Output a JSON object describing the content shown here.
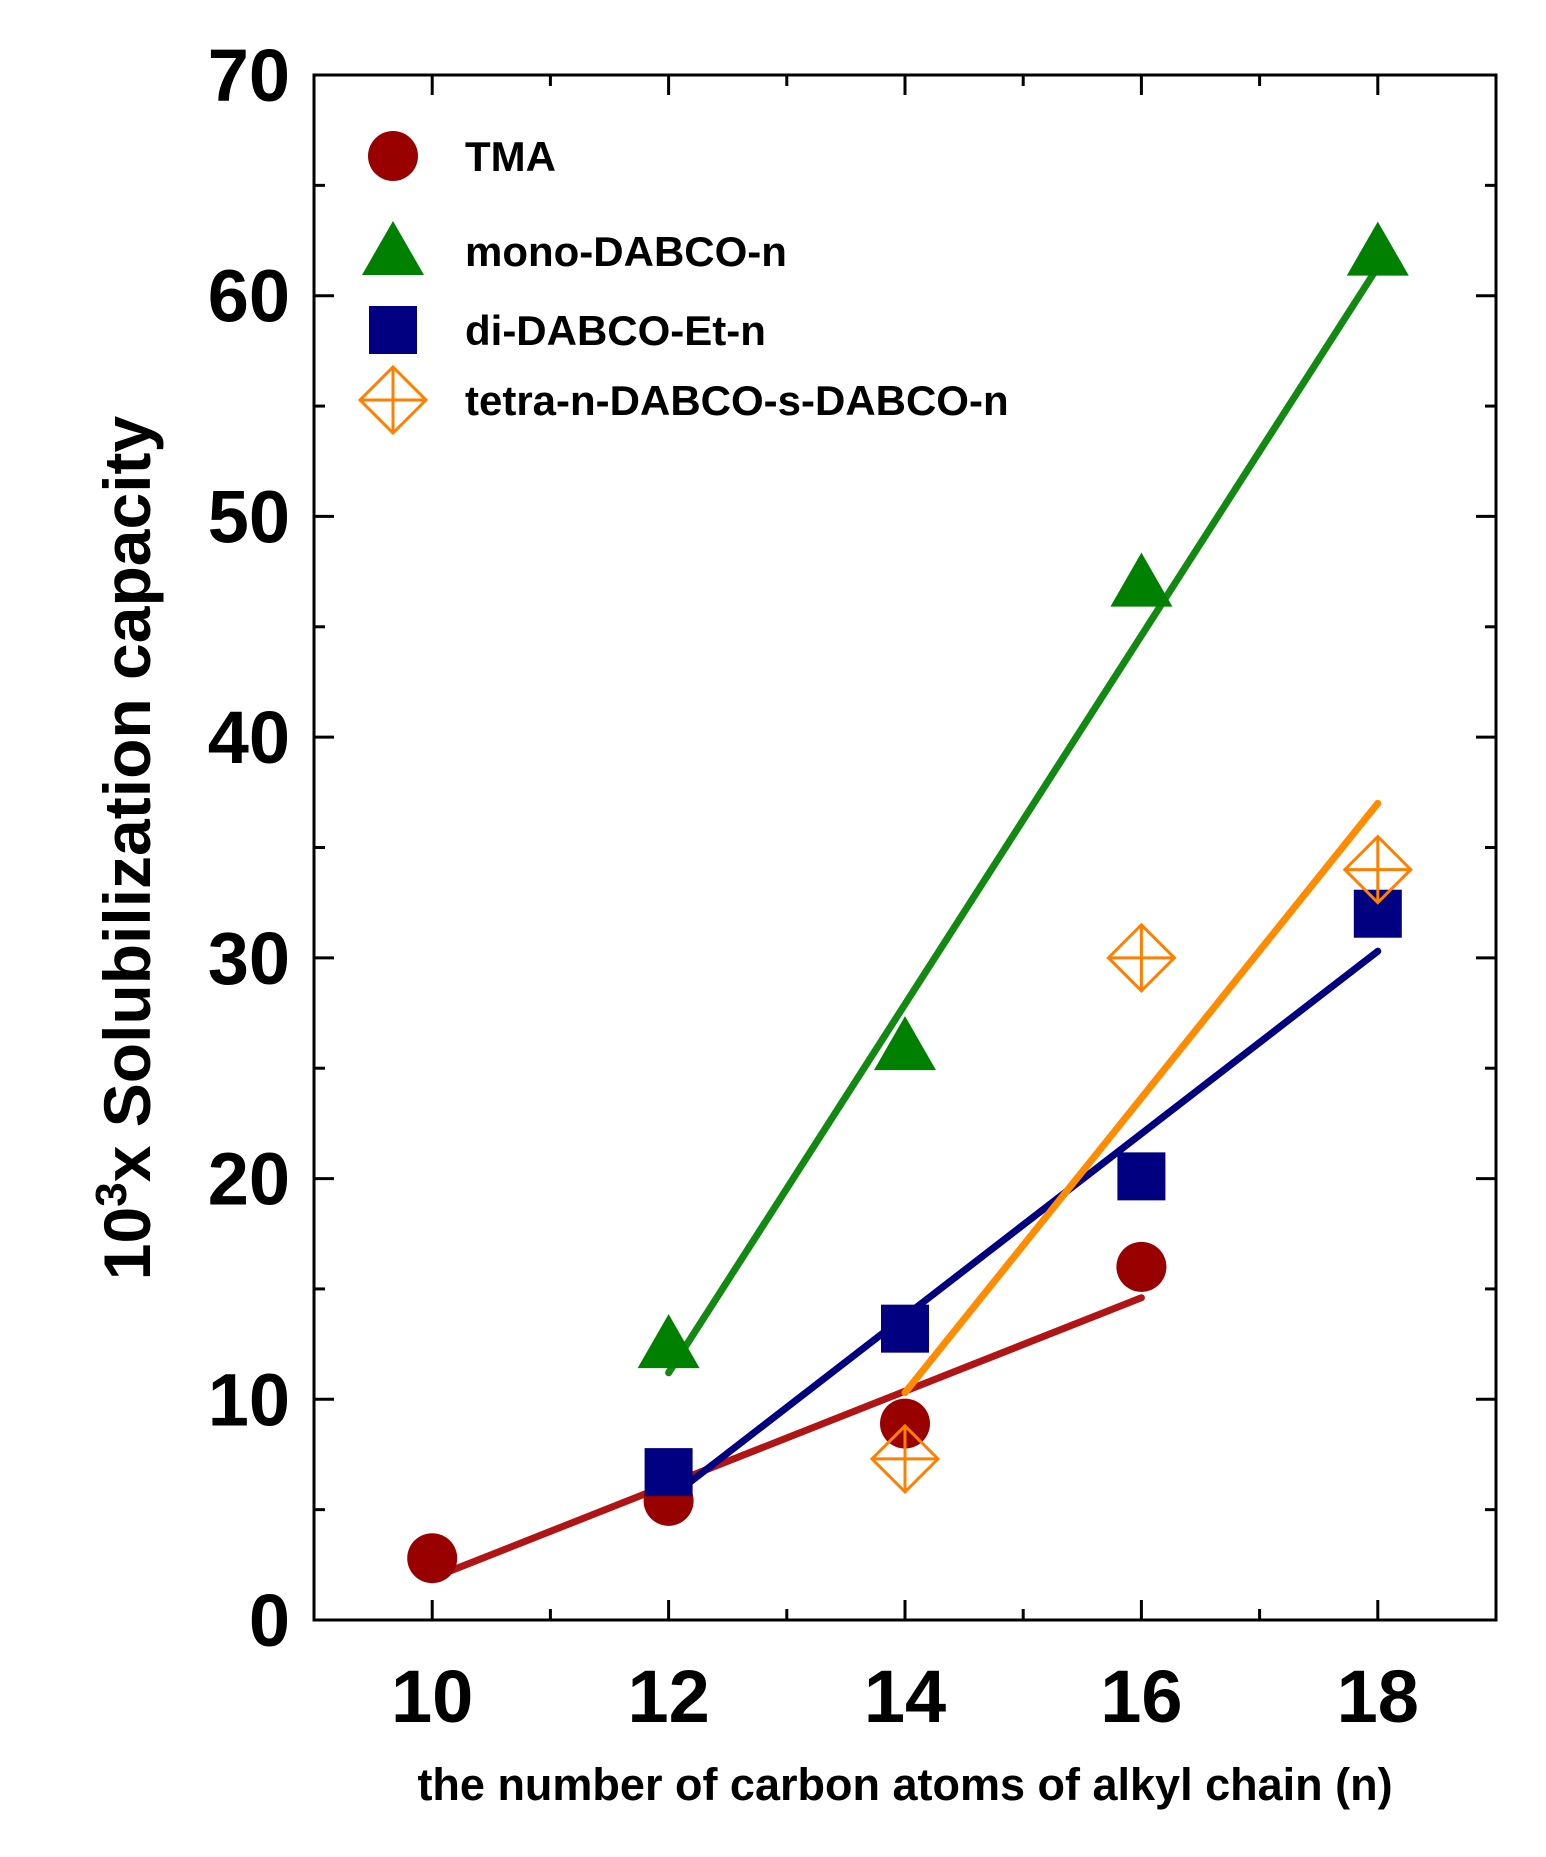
{
  "chart_data": {
    "type": "scatter",
    "title": "",
    "xlabel": "the number of carbon atoms of alkyl chain (n)",
    "ylabel": {
      "prefix": "10",
      "superscript": "3",
      "suffix": "x Solubilization capacity"
    },
    "xlim": [
      9,
      19
    ],
    "ylim": [
      0,
      70
    ],
    "x_ticks": [
      10,
      12,
      14,
      16,
      18
    ],
    "y_ticks": [
      0,
      10,
      20,
      30,
      40,
      50,
      60,
      70
    ],
    "grid": false,
    "legend_position": "top-left",
    "series": [
      {
        "name": "TMA",
        "marker": "circle",
        "color": "#990000",
        "line_color": "#b01414",
        "points": [
          {
            "x": 10,
            "y": 2.8
          },
          {
            "x": 12,
            "y": 5.4
          },
          {
            "x": 14,
            "y": 8.9
          },
          {
            "x": 16,
            "y": 16.0
          }
        ],
        "fit": [
          {
            "x": 10,
            "y": 1.9
          },
          {
            "x": 16,
            "y": 14.6
          }
        ]
      },
      {
        "name": "mono-DABCO-n",
        "marker": "triangle",
        "color": "#008000",
        "line_color": "#128a12",
        "points": [
          {
            "x": 12,
            "y": 12.5
          },
          {
            "x": 14,
            "y": 26.0
          },
          {
            "x": 16,
            "y": 47.0
          },
          {
            "x": 18,
            "y": 62.0
          }
        ],
        "fit": [
          {
            "x": 12,
            "y": 11.2
          },
          {
            "x": 18,
            "y": 61.3
          }
        ]
      },
      {
        "name": "di-DABCO-Et-n",
        "marker": "square",
        "color": "#000080",
        "line_color": "#000080",
        "points": [
          {
            "x": 12,
            "y": 6.7
          },
          {
            "x": 14,
            "y": 13.2
          },
          {
            "x": 16,
            "y": 20.1
          },
          {
            "x": 18,
            "y": 32.0
          }
        ],
        "fit": [
          {
            "x": 12,
            "y": 5.5
          },
          {
            "x": 18,
            "y": 30.3
          }
        ]
      },
      {
        "name": "tetra-n-DABCO-s-DABCO-n",
        "marker": "crossed-diamond",
        "color": "#ff8000",
        "line_color": "#ff8c00",
        "points": [
          {
            "x": 14,
            "y": 7.3
          },
          {
            "x": 16,
            "y": 30.0
          },
          {
            "x": 18,
            "y": 34.0
          }
        ],
        "fit": [
          {
            "x": 14,
            "y": 10.3
          },
          {
            "x": 18,
            "y": 37.0
          }
        ]
      }
    ]
  }
}
